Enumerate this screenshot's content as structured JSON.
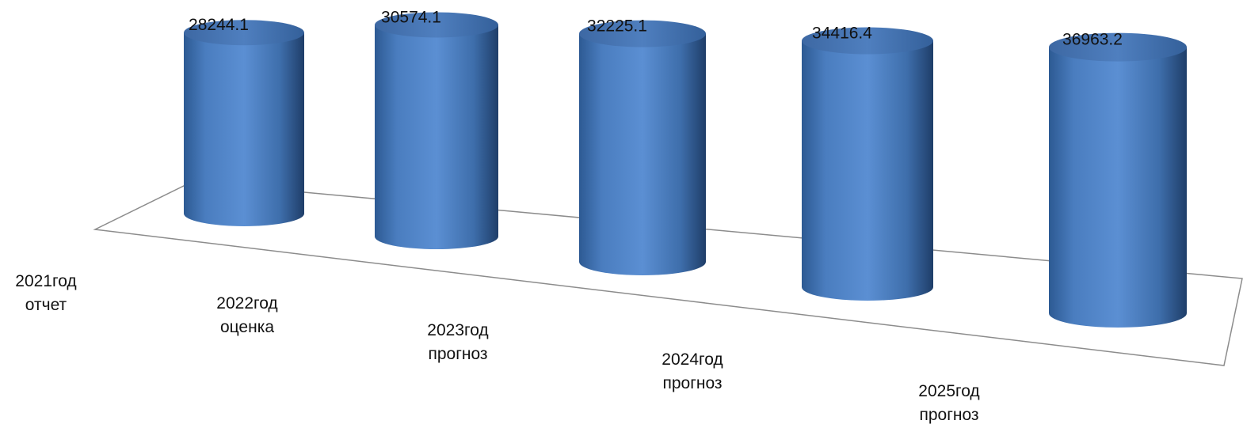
{
  "chart_data": {
    "type": "bar",
    "style": "3d-cylinder",
    "categories": [
      [
        "2021год",
        "отчет"
      ],
      [
        "2022год",
        "оценка"
      ],
      [
        "2023год",
        "прогноз"
      ],
      [
        "2024год",
        "прогноз"
      ],
      [
        "2025год",
        "прогноз"
      ]
    ],
    "values": [
      28244.1,
      30574.1,
      32225.1,
      34416.4,
      36963.2
    ],
    "value_labels": [
      "28244.1",
      "30574.1",
      "32225.1",
      "34416.4",
      "36963.2"
    ],
    "series_color": "#4f81bd",
    "floor_line_color": "#8c8c8c",
    "title": "",
    "xlabel": "",
    "ylabel": "",
    "grid": false,
    "legend": false
  }
}
